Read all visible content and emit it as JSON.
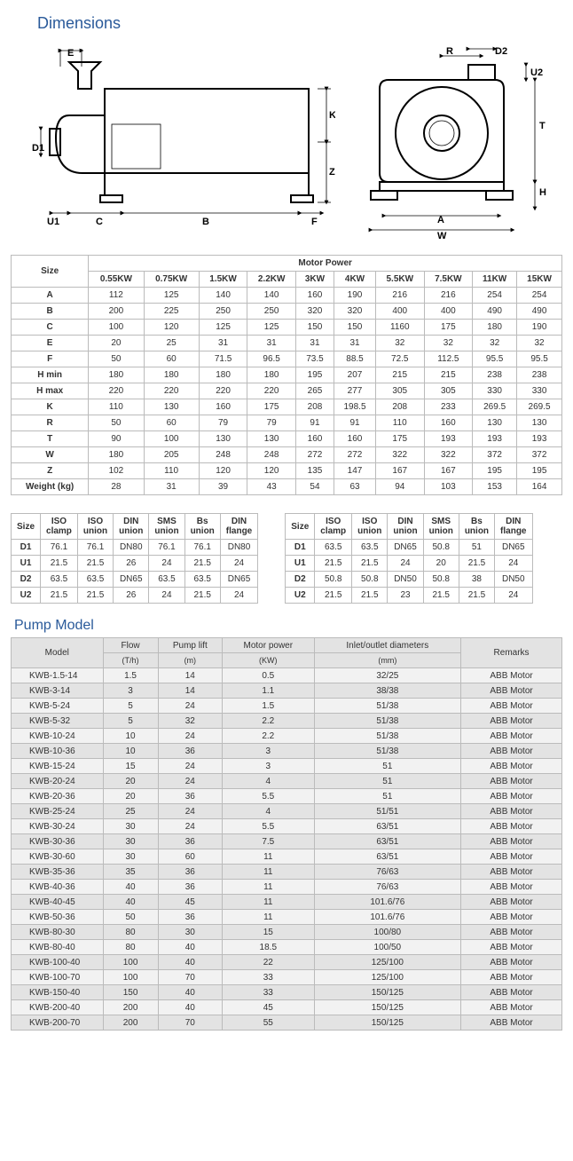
{
  "heading_dimensions": "Dimensions",
  "heading_pump_model": "Pump Model",
  "diagram_labels": {
    "E": "E",
    "D1": "D1",
    "U1": "U1",
    "C": "C",
    "B": "B",
    "F": "F",
    "K": "K",
    "Z": "Z",
    "R": "R",
    "D2": "D2",
    "U2": "U2",
    "T": "T",
    "H": "H",
    "A": "A",
    "W": "W"
  },
  "motor_table": {
    "size_header": "Size",
    "group_header": "Motor Power",
    "cols": [
      "0.55KW",
      "0.75KW",
      "1.5KW",
      "2.2KW",
      "3KW",
      "4KW",
      "5.5KW",
      "7.5KW",
      "11KW",
      "15KW"
    ],
    "rows": [
      {
        "label": "A",
        "v": [
          "112",
          "125",
          "140",
          "140",
          "160",
          "190",
          "216",
          "216",
          "254",
          "254"
        ]
      },
      {
        "label": "B",
        "v": [
          "200",
          "225",
          "250",
          "250",
          "320",
          "320",
          "400",
          "400",
          "490",
          "490"
        ]
      },
      {
        "label": "C",
        "v": [
          "100",
          "120",
          "125",
          "125",
          "150",
          "150",
          "1160",
          "175",
          "180",
          "190"
        ]
      },
      {
        "label": "E",
        "v": [
          "20",
          "25",
          "31",
          "31",
          "31",
          "31",
          "32",
          "32",
          "32",
          "32"
        ]
      },
      {
        "label": "F",
        "v": [
          "50",
          "60",
          "71.5",
          "96.5",
          "73.5",
          "88.5",
          "72.5",
          "112.5",
          "95.5",
          "95.5"
        ]
      },
      {
        "label": "H min",
        "v": [
          "180",
          "180",
          "180",
          "180",
          "195",
          "207",
          "215",
          "215",
          "238",
          "238"
        ]
      },
      {
        "label": "H max",
        "v": [
          "220",
          "220",
          "220",
          "220",
          "265",
          "277",
          "305",
          "305",
          "330",
          "330"
        ]
      },
      {
        "label": "K",
        "v": [
          "110",
          "130",
          "160",
          "175",
          "208",
          "198.5",
          "208",
          "233",
          "269.5",
          "269.5"
        ]
      },
      {
        "label": "R",
        "v": [
          "50",
          "60",
          "79",
          "79",
          "91",
          "91",
          "110",
          "160",
          "130",
          "130"
        ]
      },
      {
        "label": "T",
        "v": [
          "90",
          "100",
          "130",
          "130",
          "160",
          "160",
          "175",
          "193",
          "193",
          "193"
        ]
      },
      {
        "label": "W",
        "v": [
          "180",
          "205",
          "248",
          "248",
          "272",
          "272",
          "322",
          "322",
          "372",
          "372"
        ]
      },
      {
        "label": "Z",
        "v": [
          "102",
          "110",
          "120",
          "120",
          "135",
          "147",
          "167",
          "167",
          "195",
          "195"
        ]
      },
      {
        "label": "Weight (kg)",
        "v": [
          "28",
          "31",
          "39",
          "43",
          "54",
          "63",
          "94",
          "103",
          "153",
          "164"
        ]
      }
    ]
  },
  "conn_table_left": {
    "size_header": "Size",
    "cols": [
      "ISO\nclamp",
      "ISO\nunion",
      "DIN\nunion",
      "SMS\nunion",
      "Bs\nunion",
      "DIN\nflange"
    ],
    "rows": [
      {
        "label": "D1",
        "v": [
          "76.1",
          "76.1",
          "DN80",
          "76.1",
          "76.1",
          "DN80"
        ]
      },
      {
        "label": "U1",
        "v": [
          "21.5",
          "21.5",
          "26",
          "24",
          "21.5",
          "24"
        ]
      },
      {
        "label": "D2",
        "v": [
          "63.5",
          "63.5",
          "DN65",
          "63.5",
          "63.5",
          "DN65"
        ]
      },
      {
        "label": "U2",
        "v": [
          "21.5",
          "21.5",
          "26",
          "24",
          "21.5",
          "24"
        ]
      }
    ]
  },
  "conn_table_right": {
    "size_header": "Size",
    "cols": [
      "ISO\nclamp",
      "ISO\nunion",
      "DIN\nunion",
      "SMS\nunion",
      "Bs\nunion",
      "DIN\nflange"
    ],
    "rows": [
      {
        "label": "D1",
        "v": [
          "63.5",
          "63.5",
          "DN65",
          "50.8",
          "51",
          "DN65"
        ]
      },
      {
        "label": "U1",
        "v": [
          "21.5",
          "21.5",
          "24",
          "20",
          "21.5",
          "24"
        ]
      },
      {
        "label": "D2",
        "v": [
          "50.8",
          "50.8",
          "DN50",
          "50.8",
          "38",
          "DN50"
        ]
      },
      {
        "label": "U2",
        "v": [
          "21.5",
          "21.5",
          "23",
          "21.5",
          "21.5",
          "24"
        ]
      }
    ]
  },
  "pump_table": {
    "headers": [
      "Model",
      "Flow",
      "Pump lift",
      "Motor power",
      "Inlet/outlet diameters",
      "Remarks"
    ],
    "units": [
      "",
      "(T/h)",
      "(m)",
      "(KW)",
      "(mm)",
      ""
    ],
    "rows": [
      [
        "KWB-1.5-14",
        "1.5",
        "14",
        "0.5",
        "32/25",
        "ABB Motor"
      ],
      [
        "KWB-3-14",
        "3",
        "14",
        "1.1",
        "38/38",
        "ABB Motor"
      ],
      [
        "KWB-5-24",
        "5",
        "24",
        "1.5",
        "51/38",
        "ABB Motor"
      ],
      [
        "KWB-5-32",
        "5",
        "32",
        "2.2",
        "51/38",
        "ABB Motor"
      ],
      [
        "KWB-10-24",
        "10",
        "24",
        "2.2",
        "51/38",
        "ABB Motor"
      ],
      [
        "KWB-10-36",
        "10",
        "36",
        "3",
        "51/38",
        "ABB Motor"
      ],
      [
        "KWB-15-24",
        "15",
        "24",
        "3",
        "51",
        "ABB Motor"
      ],
      [
        "KWB-20-24",
        "20",
        "24",
        "4",
        "51",
        "ABB Motor"
      ],
      [
        "KWB-20-36",
        "20",
        "36",
        "5.5",
        "51",
        "ABB Motor"
      ],
      [
        "KWB-25-24",
        "25",
        "24",
        "4",
        "51/51",
        "ABB Motor"
      ],
      [
        "KWB-30-24",
        "30",
        "24",
        "5.5",
        "63/51",
        "ABB Motor"
      ],
      [
        "KWB-30-36",
        "30",
        "36",
        "7.5",
        "63/51",
        "ABB Motor"
      ],
      [
        "KWB-30-60",
        "30",
        "60",
        "11",
        "63/51",
        "ABB Motor"
      ],
      [
        "KWB-35-36",
        "35",
        "36",
        "11",
        "76/63",
        "ABB Motor"
      ],
      [
        "KWB-40-36",
        "40",
        "36",
        "11",
        "76/63",
        "ABB Motor"
      ],
      [
        "KWB-40-45",
        "40",
        "45",
        "11",
        "101.6/76",
        "ABB Motor"
      ],
      [
        "KWB-50-36",
        "50",
        "36",
        "11",
        "101.6/76",
        "ABB Motor"
      ],
      [
        "KWB-80-30",
        "80",
        "30",
        "15",
        "100/80",
        "ABB Motor"
      ],
      [
        "KWB-80-40",
        "80",
        "40",
        "18.5",
        "100/50",
        "ABB Motor"
      ],
      [
        "KWB-100-40",
        "100",
        "40",
        "22",
        "125/100",
        "ABB Motor"
      ],
      [
        "KWB-100-70",
        "100",
        "70",
        "33",
        "125/100",
        "ABB Motor"
      ],
      [
        "KWB-150-40",
        "150",
        "40",
        "33",
        "150/125",
        "ABB Motor"
      ],
      [
        "KWB-200-40",
        "200",
        "40",
        "45",
        "150/125",
        "ABB Motor"
      ],
      [
        "KWB-200-70",
        "200",
        "70",
        "55",
        "150/125",
        "ABB Motor"
      ]
    ]
  }
}
